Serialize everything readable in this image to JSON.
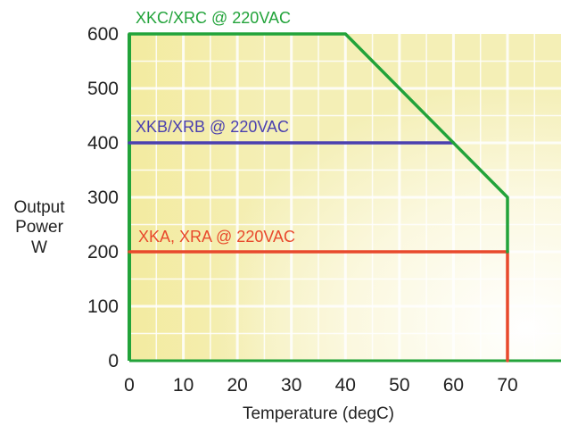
{
  "chart_data": {
    "type": "line",
    "title": "",
    "xlabel": "Temperature (degC)",
    "ylabel_lines": [
      "Output",
      "Power",
      "W"
    ],
    "xlim": [
      0,
      80
    ],
    "ylim": [
      0,
      600
    ],
    "xticks": [
      0,
      10,
      20,
      30,
      40,
      50,
      60,
      70
    ],
    "yticks": [
      0,
      100,
      200,
      300,
      400,
      500,
      600
    ],
    "grid": true,
    "series": [
      {
        "name": "XKC/XRC @ 220VAC",
        "color": "#22a33a",
        "points": [
          [
            0,
            600
          ],
          [
            40,
            600
          ],
          [
            70,
            300
          ],
          [
            70,
            200
          ]
        ]
      },
      {
        "name": "XKB/XRB @ 220VAC",
        "color": "#4a3fb0",
        "points": [
          [
            0,
            400
          ],
          [
            60,
            400
          ]
        ]
      },
      {
        "name": "XKA, XRA @ 220VAC",
        "color": "#e8492c",
        "points": [
          [
            0,
            200
          ],
          [
            70,
            200
          ],
          [
            70,
            0
          ]
        ]
      }
    ]
  }
}
